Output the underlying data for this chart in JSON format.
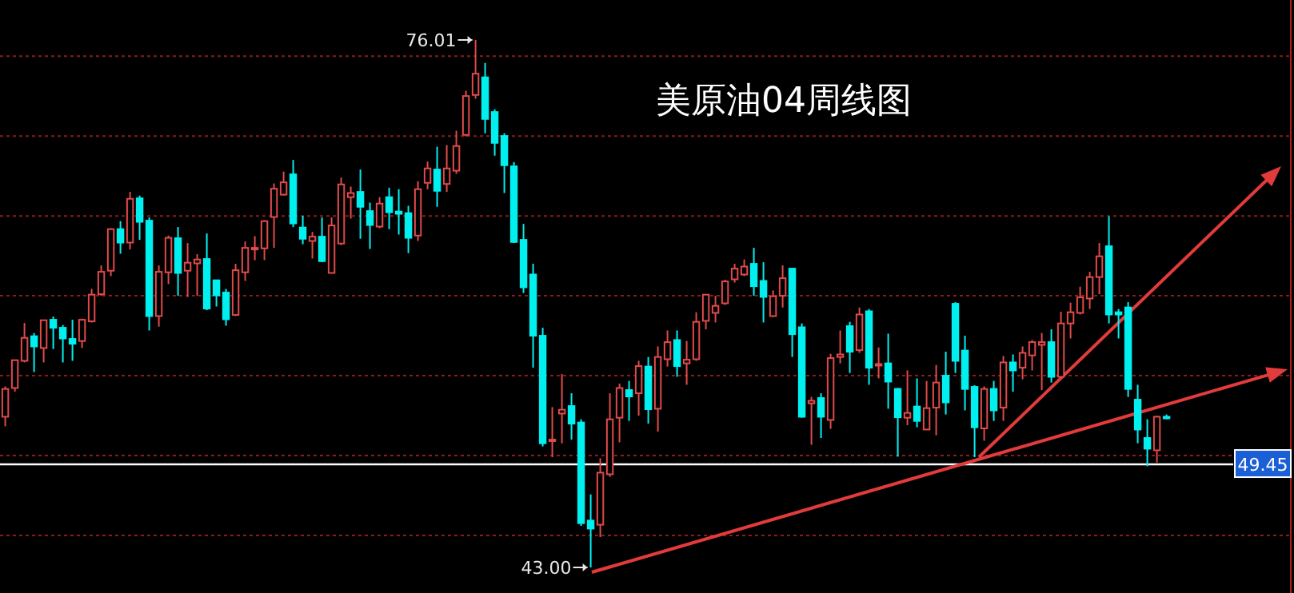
{
  "chart_data": {
    "type": "candlestick",
    "title": "美原油04周线图",
    "categories": [
      null,
      null,
      null,
      null,
      null,
      null,
      null,
      null,
      null,
      null,
      null,
      null,
      null,
      null,
      null,
      null,
      null,
      null,
      null,
      null,
      null,
      null,
      null,
      null,
      null,
      null,
      null,
      null,
      null,
      null,
      null,
      null,
      null,
      null,
      null,
      null,
      null,
      null,
      null,
      null,
      null,
      null,
      null,
      null,
      null,
      null,
      null,
      null,
      null,
      null,
      null,
      null,
      null,
      null,
      null,
      null,
      null,
      null,
      null,
      null,
      null,
      null,
      null,
      null,
      null,
      null,
      null,
      null,
      null,
      null,
      null,
      null,
      null,
      null,
      null,
      null,
      null,
      null,
      null,
      null,
      null,
      null,
      null,
      null,
      null,
      null,
      null,
      null,
      null,
      null,
      null,
      null,
      null,
      null,
      null,
      null,
      null,
      null,
      null,
      null,
      null,
      null,
      null,
      null,
      null,
      null,
      null,
      null,
      null,
      null,
      null,
      null,
      null,
      null,
      null,
      null,
      null,
      null,
      null,
      null,
      null,
      null
    ],
    "ohlc": [
      [
        52.43,
        54.33,
        51.83,
        54.17
      ],
      [
        54.23,
        56.0,
        54.0,
        55.97
      ],
      [
        55.93,
        58.3,
        55.83,
        57.37
      ],
      [
        57.47,
        57.67,
        55.23,
        56.83
      ],
      [
        56.73,
        58.5,
        55.83,
        58.47
      ],
      [
        58.5,
        58.7,
        56.67,
        58.0
      ],
      [
        58.0,
        58.17,
        55.83,
        57.33
      ],
      [
        57.3,
        58.5,
        55.93,
        57.0
      ],
      [
        57.17,
        58.57,
        56.73,
        58.5
      ],
      [
        58.4,
        60.43,
        58.33,
        60.07
      ],
      [
        60.1,
        61.9,
        60.0,
        61.5
      ],
      [
        61.57,
        64.23,
        61.23,
        64.17
      ],
      [
        64.17,
        64.67,
        62.63,
        63.33
      ],
      [
        63.33,
        66.5,
        62.9,
        66.07
      ],
      [
        66.1,
        66.27,
        63.5,
        64.63
      ],
      [
        64.7,
        64.9,
        57.83,
        58.73
      ],
      [
        58.73,
        61.9,
        58.07,
        61.5
      ],
      [
        61.47,
        63.77,
        60.73,
        63.63
      ],
      [
        63.6,
        64.3,
        60.0,
        61.43
      ],
      [
        61.57,
        63.3,
        59.93,
        62.07
      ],
      [
        62.03,
        62.6,
        60.0,
        62.27
      ],
      [
        62.3,
        63.9,
        59.1,
        59.2
      ],
      [
        60.97,
        61.0,
        59.33,
        60.03
      ],
      [
        60.2,
        60.43,
        58.13,
        58.53
      ],
      [
        58.8,
        62.0,
        58.73,
        61.6
      ],
      [
        61.47,
        63.4,
        60.93,
        63.0
      ],
      [
        62.9,
        63.73,
        62.23,
        63.0
      ],
      [
        62.97,
        64.73,
        62.23,
        64.67
      ],
      [
        64.93,
        67.03,
        63.0,
        66.7
      ],
      [
        66.33,
        67.77,
        66.27,
        67.1
      ],
      [
        67.6,
        68.5,
        64.3,
        64.53
      ],
      [
        64.27,
        65.0,
        63.23,
        63.57
      ],
      [
        63.43,
        64.0,
        62.33,
        63.7
      ],
      [
        63.7,
        64.9,
        62.1,
        62.17
      ],
      [
        61.43,
        64.9,
        61.4,
        64.4
      ],
      [
        63.27,
        67.4,
        63.17,
        66.97
      ],
      [
        66.17,
        66.83,
        64.83,
        66.43
      ],
      [
        66.5,
        67.9,
        63.57,
        65.57
      ],
      [
        65.3,
        65.83,
        62.93,
        64.43
      ],
      [
        64.33,
        66.17,
        64.23,
        65.77
      ],
      [
        66.17,
        66.77,
        64.17,
        65.23
      ],
      [
        65.27,
        66.67,
        63.83,
        65.13
      ],
      [
        65.17,
        65.63,
        62.67,
        63.63
      ],
      [
        63.77,
        67.17,
        63.43,
        66.67
      ],
      [
        67.07,
        68.4,
        66.67,
        67.97
      ],
      [
        67.9,
        69.33,
        65.57,
        66.57
      ],
      [
        67.0,
        69.43,
        66.5,
        67.97
      ],
      [
        67.83,
        70.33,
        67.63,
        69.37
      ],
      [
        70.07,
        72.83,
        69.97,
        72.5
      ],
      [
        72.57,
        76.01,
        72.33,
        73.9
      ],
      [
        73.67,
        74.57,
        70.17,
        71.07
      ],
      [
        71.5,
        71.67,
        68.77,
        69.57
      ],
      [
        70.0,
        70.17,
        66.43,
        68.17
      ],
      [
        68.1,
        68.37,
        63.3,
        63.37
      ],
      [
        63.5,
        64.5,
        60.17,
        60.53
      ],
      [
        61.33,
        62.0,
        55.5,
        57.5
      ],
      [
        57.5,
        58.0,
        50.57,
        50.77
      ],
      [
        50.9,
        53.03,
        49.9,
        51.0
      ],
      [
        52.63,
        55.1,
        50.77,
        52.87
      ],
      [
        53.1,
        53.9,
        51.0,
        52.0
      ],
      [
        52.07,
        52.27,
        45.6,
        45.77
      ],
      [
        45.93,
        47.57,
        43.0,
        45.43
      ],
      [
        45.67,
        49.83,
        44.9,
        48.93
      ],
      [
        48.83,
        53.9,
        48.67,
        52.27
      ],
      [
        52.37,
        54.5,
        50.83,
        54.23
      ],
      [
        54.1,
        54.67,
        52.17,
        53.7
      ],
      [
        53.9,
        55.93,
        52.5,
        55.6
      ],
      [
        55.57,
        56.17,
        52.0,
        52.9
      ],
      [
        52.93,
        56.83,
        51.5,
        56.17
      ],
      [
        56.03,
        57.83,
        55.57,
        57.1
      ],
      [
        57.23,
        57.83,
        54.93,
        55.6
      ],
      [
        55.77,
        57.17,
        54.43,
        56.0
      ],
      [
        56.03,
        58.97,
        55.93,
        58.37
      ],
      [
        58.43,
        60.1,
        57.9,
        60.07
      ],
      [
        58.93,
        60.0,
        58.33,
        59.37
      ],
      [
        59.53,
        61.0,
        59.43,
        60.9
      ],
      [
        61.03,
        62.0,
        60.83,
        61.7
      ],
      [
        61.33,
        62.27,
        61.23,
        61.83
      ],
      [
        62.0,
        63.0,
        60.0,
        60.6
      ],
      [
        60.93,
        62.1,
        58.33,
        59.93
      ],
      [
        58.73,
        60.33,
        58.67,
        59.97
      ],
      [
        60.0,
        61.9,
        59.27,
        61.1
      ],
      [
        61.7,
        61.73,
        56.17,
        57.6
      ],
      [
        58.03,
        58.27,
        52.37,
        52.43
      ],
      [
        53.27,
        53.67,
        50.67,
        53.43
      ],
      [
        53.6,
        53.9,
        51.1,
        52.43
      ],
      [
        52.23,
        56.37,
        51.67,
        56.1
      ],
      [
        56.17,
        57.83,
        55.77,
        56.33
      ],
      [
        58.1,
        58.37,
        55.17,
        56.5
      ],
      [
        56.6,
        59.27,
        56.43,
        58.83
      ],
      [
        59.03,
        59.17,
        54.43,
        55.5
      ],
      [
        55.63,
        56.77,
        54.83,
        55.73
      ],
      [
        55.77,
        57.63,
        52.93,
        54.63
      ],
      [
        54.17,
        54.23,
        49.93,
        52.4
      ],
      [
        52.37,
        55.33,
        51.9,
        52.67
      ],
      [
        53.07,
        54.83,
        51.77,
        52.17
      ],
      [
        51.63,
        54.67,
        51.6,
        52.97
      ],
      [
        53.0,
        55.67,
        51.27,
        54.57
      ],
      [
        55.0,
        56.5,
        52.57,
        53.33
      ],
      [
        59.5,
        59.6,
        55.17,
        55.93
      ],
      [
        56.57,
        57.5,
        52.83,
        54.17
      ],
      [
        54.3,
        54.4,
        49.9,
        51.77
      ],
      [
        51.7,
        54.33,
        50.93,
        54.17
      ],
      [
        54.17,
        54.67,
        52.17,
        52.83
      ],
      [
        53.0,
        56.23,
        52.17,
        55.83
      ],
      [
        55.83,
        56.33,
        54.0,
        55.33
      ],
      [
        55.5,
        56.83,
        54.77,
        56.43
      ],
      [
        56.27,
        57.23,
        55.33,
        57.1
      ],
      [
        56.93,
        57.67,
        54.1,
        57.1
      ],
      [
        57.1,
        57.9,
        54.57,
        54.93
      ],
      [
        54.93,
        59.0,
        54.83,
        58.27
      ],
      [
        58.27,
        59.57,
        57.33,
        58.97
      ],
      [
        58.93,
        60.57,
        58.83,
        59.9
      ],
      [
        59.83,
        61.5,
        59.17,
        61.17
      ],
      [
        61.17,
        63.3,
        60.1,
        62.47
      ],
      [
        63.1,
        64.97,
        58.27,
        58.83
      ],
      [
        58.97,
        59.17,
        57.33,
        58.83
      ],
      [
        59.27,
        59.6,
        53.67,
        54.17
      ],
      [
        53.5,
        54.43,
        50.77,
        51.63
      ],
      [
        51.1,
        52.27,
        49.33,
        50.43
      ],
      [
        50.33,
        52.5,
        49.57,
        52.43
      ],
      [
        52.43,
        52.57,
        52.27,
        52.33
      ]
    ],
    "yticks": [
      {
        "value": 45,
        "label": null
      },
      {
        "value": 50,
        "label": null
      },
      {
        "value": 55,
        "label": null
      },
      {
        "value": 60,
        "label": null
      },
      {
        "value": 65,
        "label": null
      },
      {
        "value": 70,
        "label": null
      },
      {
        "value": 75,
        "label": null
      }
    ],
    "grid": "y",
    "ref_lines": [
      {
        "axis": "y",
        "value": 49.45,
        "label": "49.45",
        "color": "#ffffff"
      }
    ],
    "annotations": [
      "76.01",
      "43.00"
    ]
  }
}
